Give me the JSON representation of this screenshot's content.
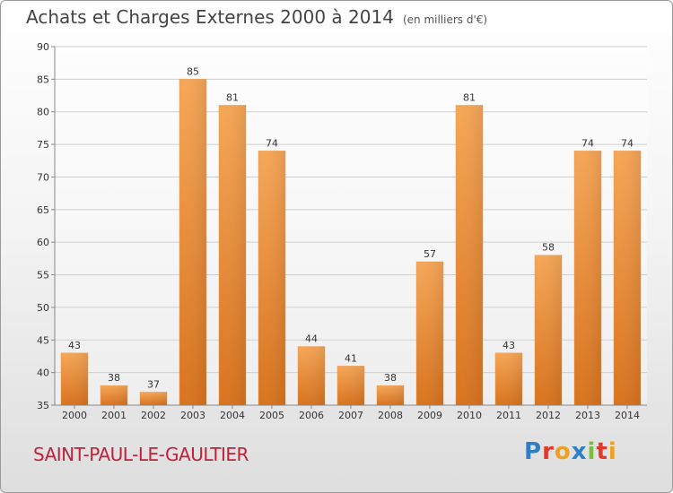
{
  "title": "Achats et Charges Externes 2000 à 2014",
  "subtitle": "(en milliers d'€)",
  "commune": "SAINT-PAUL-LE-GAULTIER",
  "logo": {
    "letters": [
      "P",
      "r",
      "o",
      "x",
      "i",
      "t",
      "i"
    ],
    "colors": [
      "#2e7fc4",
      "#e23a2a",
      "#f0a020",
      "#2e7fc4",
      "#7abf3a",
      "#e23a2a",
      "#f0a020"
    ]
  },
  "chart_data": {
    "type": "bar",
    "categories": [
      "2000",
      "2001",
      "2002",
      "2003",
      "2004",
      "2005",
      "2006",
      "2007",
      "2008",
      "2009",
      "2010",
      "2011",
      "2012",
      "2013",
      "2014"
    ],
    "values": [
      43,
      38,
      37,
      85,
      81,
      74,
      44,
      41,
      38,
      57,
      81,
      43,
      58,
      74,
      74
    ],
    "ylim": [
      35,
      90
    ],
    "yticks": [
      35,
      40,
      45,
      50,
      55,
      60,
      65,
      70,
      75,
      80,
      85,
      90
    ],
    "grid": true,
    "bar_color": "#f0943a"
  }
}
